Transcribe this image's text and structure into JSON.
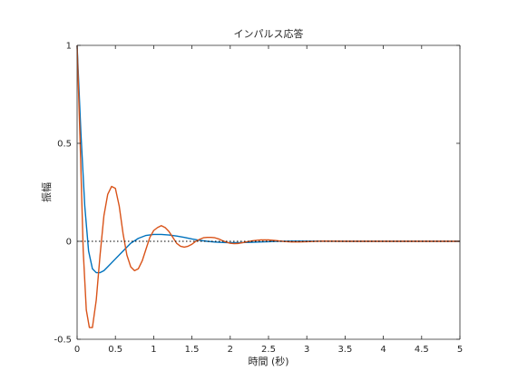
{
  "chart_data": {
    "type": "line",
    "title": "インパルス応答",
    "xlabel": "時間 (秒)",
    "ylabel": "振幅",
    "xlim": [
      0,
      5
    ],
    "ylim": [
      -0.5,
      1
    ],
    "xticks": [
      0,
      0.5,
      1,
      1.5,
      2,
      2.5,
      3,
      3.5,
      4,
      4.5,
      5
    ],
    "xtick_labels": [
      "0",
      "0.5",
      "1",
      "1.5",
      "2",
      "2.5",
      "3",
      "3.5",
      "4",
      "4.5",
      "5"
    ],
    "yticks": [
      -0.5,
      0,
      0.5,
      1
    ],
    "ytick_labels": [
      "-0.5",
      "0",
      "0.5",
      "1"
    ],
    "grid": false,
    "reference_line": {
      "y": 0,
      "style": "dotted",
      "color": "#000000"
    },
    "series": [
      {
        "color": "#0072BD",
        "x": [
          0,
          0.05,
          0.1,
          0.15,
          0.2,
          0.25,
          0.3,
          0.35,
          0.4,
          0.5,
          0.6,
          0.7,
          0.8,
          0.9,
          1.0,
          1.1,
          1.2,
          1.3,
          1.4,
          1.5,
          1.6,
          1.7,
          1.8,
          1.9,
          2.0,
          2.1,
          2.2,
          2.3,
          2.4,
          2.5,
          2.6,
          2.8,
          3.0,
          3.5,
          4.0,
          4.5,
          5.0
        ],
        "y": [
          1.0,
          0.55,
          0.18,
          -0.05,
          -0.14,
          -0.16,
          -0.16,
          -0.15,
          -0.13,
          -0.09,
          -0.05,
          -0.01,
          0.015,
          0.03,
          0.035,
          0.035,
          0.032,
          0.027,
          0.02,
          0.012,
          0.005,
          0.0,
          -0.004,
          -0.006,
          -0.007,
          -0.007,
          -0.006,
          -0.005,
          -0.003,
          -0.002,
          0.0,
          0.001,
          0.001,
          0.0,
          0.0,
          0.0,
          0.0
        ]
      },
      {
        "color": "#D95319",
        "x": [
          0,
          0.04,
          0.08,
          0.12,
          0.16,
          0.2,
          0.25,
          0.3,
          0.35,
          0.4,
          0.45,
          0.5,
          0.55,
          0.6,
          0.65,
          0.7,
          0.75,
          0.8,
          0.85,
          0.9,
          0.95,
          1.0,
          1.05,
          1.1,
          1.15,
          1.2,
          1.25,
          1.3,
          1.35,
          1.4,
          1.45,
          1.5,
          1.55,
          1.6,
          1.65,
          1.7,
          1.75,
          1.8,
          1.85,
          1.9,
          1.95,
          2.0,
          2.05,
          2.1,
          2.15,
          2.2,
          2.3,
          2.4,
          2.5,
          2.6,
          2.7,
          2.8,
          2.9,
          3.0,
          3.2,
          3.5,
          4.0,
          4.5,
          5.0
        ],
        "y": [
          1.0,
          0.5,
          -0.05,
          -0.35,
          -0.44,
          -0.44,
          -0.3,
          -0.07,
          0.13,
          0.24,
          0.28,
          0.27,
          0.18,
          0.04,
          -0.07,
          -0.13,
          -0.15,
          -0.14,
          -0.1,
          -0.04,
          0.02,
          0.055,
          0.07,
          0.08,
          0.07,
          0.05,
          0.02,
          -0.01,
          -0.025,
          -0.03,
          -0.025,
          -0.015,
          0.0,
          0.01,
          0.018,
          0.02,
          0.02,
          0.018,
          0.012,
          0.003,
          -0.004,
          -0.01,
          -0.012,
          -0.011,
          -0.008,
          -0.004,
          0.003,
          0.007,
          0.007,
          0.004,
          -0.001,
          -0.003,
          -0.003,
          -0.002,
          0.001,
          0.0,
          0.0,
          0.0,
          0.0
        ]
      }
    ]
  }
}
